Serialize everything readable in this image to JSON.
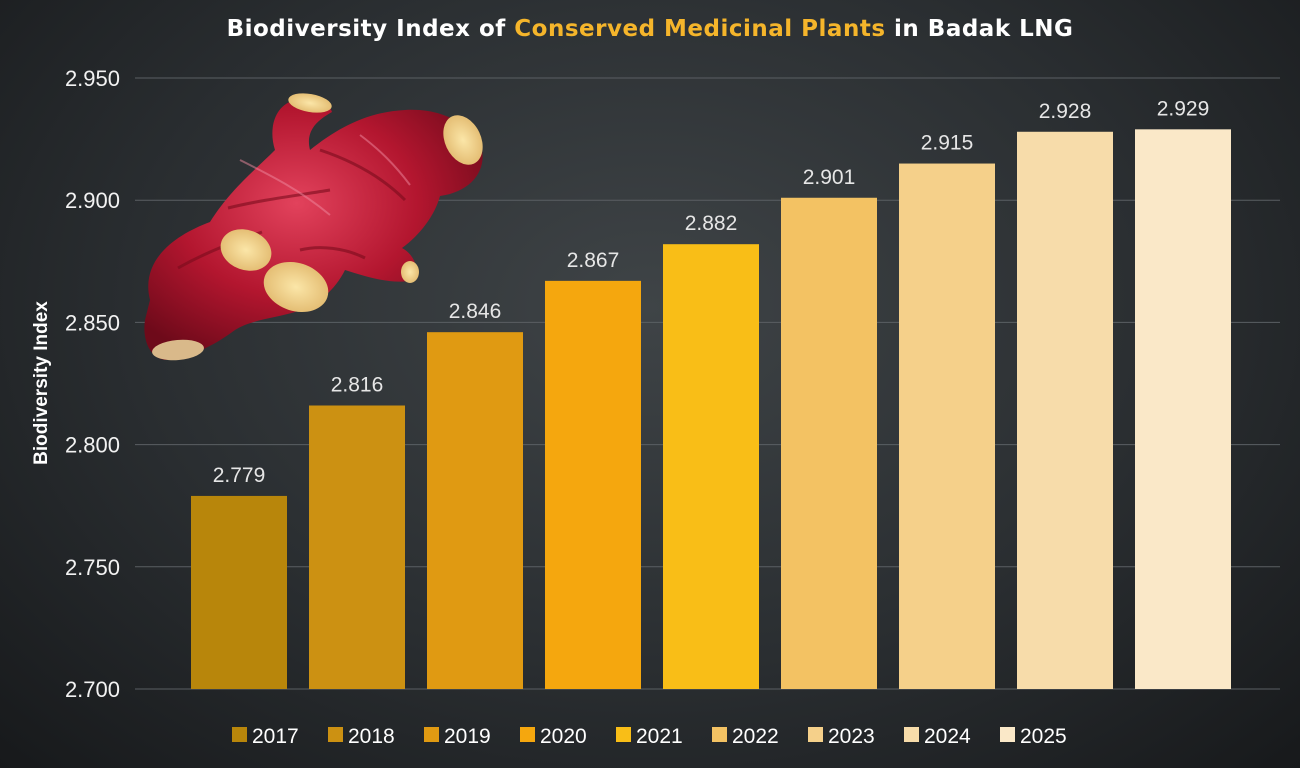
{
  "title": {
    "prefix": "Biodiversity Index of ",
    "highlight": "Conserved Medicinal Plants",
    "suffix": " in Badak LNG"
  },
  "colors": {
    "title_highlight": "#f5b52b",
    "bars": [
      "#b8860b",
      "#cc9112",
      "#e09a12",
      "#f5a70e",
      "#f9be17",
      "#f3c263",
      "#f5d08a",
      "#f7dcaa",
      "#fae8c8"
    ]
  },
  "image": {
    "name": "red-ginger-root-image"
  },
  "chart_data": {
    "type": "bar",
    "title": "Biodiversity Index of Conserved Medicinal Plants in Badak LNG",
    "xlabel": "",
    "ylabel": "Biodiversity Index",
    "categories": [
      "2017",
      "2018",
      "2019",
      "2020",
      "2021",
      "2022",
      "2023",
      "2024",
      "2025"
    ],
    "values": [
      2.779,
      2.816,
      2.846,
      2.867,
      2.882,
      2.901,
      2.915,
      2.928,
      2.929
    ],
    "value_labels": [
      "2.779",
      "2.816",
      "2.846",
      "2.867",
      "2.882",
      "2.901",
      "2.915",
      "2.928",
      "2.929"
    ],
    "ylim": [
      2.7,
      2.95
    ],
    "yticks": [
      2.7,
      2.75,
      2.8,
      2.85,
      2.9,
      2.95
    ],
    "ytick_labels": [
      "2.700",
      "2.750",
      "2.800",
      "2.850",
      "2.900",
      "2.950"
    ],
    "grid": true,
    "legend": {
      "placement": "bottom",
      "entries": [
        "2017",
        "2018",
        "2019",
        "2020",
        "2021",
        "2022",
        "2023",
        "2024",
        "2025"
      ]
    }
  }
}
